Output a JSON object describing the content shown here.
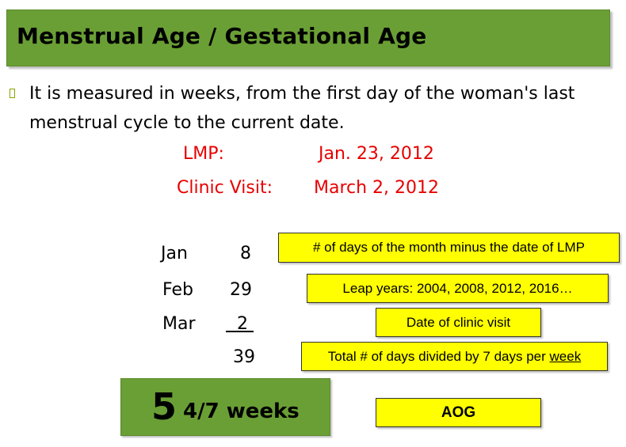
{
  "title": "Menstrual Age / Gestational Age",
  "bullet_text": "It is measured in weeks, from the first day of the woman's last menstrual cycle to the current date.",
  "dates": {
    "lmp_label": "LMP:",
    "lmp_value": "Jan. 23, 2012",
    "visit_label": "Clinic Visit:",
    "visit_value": "March 2, 2012"
  },
  "calculation": {
    "rows": [
      {
        "month": "Jan",
        "days": "8"
      },
      {
        "month": "Feb",
        "days": "29"
      },
      {
        "month": "Mar",
        "days": "2"
      }
    ],
    "total": "39"
  },
  "notes": {
    "jan": "# of days of the month minus the date of LMP",
    "feb": "Leap years: 2004, 2008, 2012, 2016…",
    "mar": "Date of clinic visit",
    "total_prefix": "Total # of days divided by 7 days per ",
    "total_emph": "week",
    "aog": "AOG"
  },
  "result": {
    "whole": "5",
    "fraction": "4/7 weeks"
  },
  "colors": {
    "title_bg": "#6a9f35",
    "highlight": "#ffff00",
    "date_text": "#e80000"
  }
}
